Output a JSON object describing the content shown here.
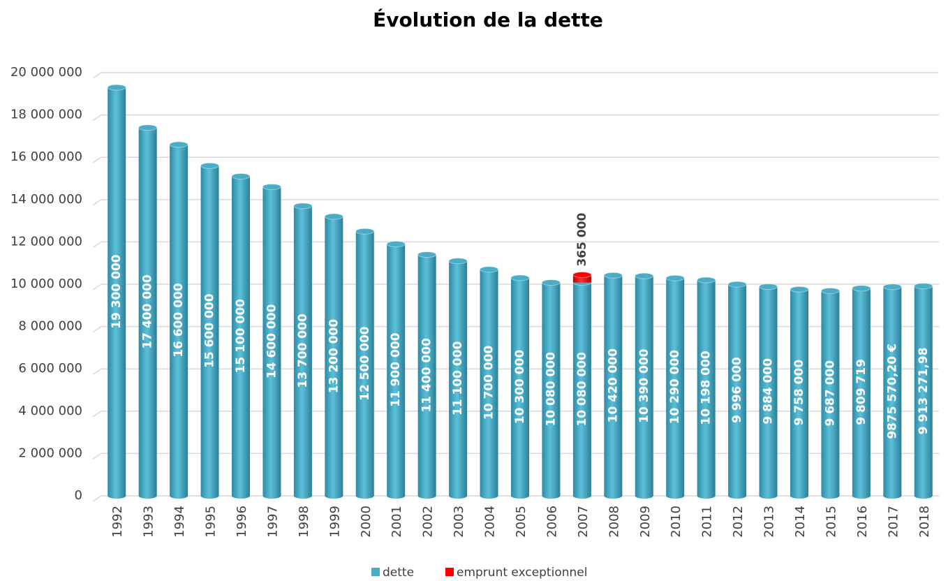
{
  "chart_data": {
    "type": "bar",
    "stacked": true,
    "title": "Évolution de la dette",
    "categories": [
      "1992",
      "1993",
      "1994",
      "1995",
      "1996",
      "1997",
      "1998",
      "1999",
      "2000",
      "2001",
      "2002",
      "2003",
      "2004",
      "2005",
      "2006",
      "2007",
      "2008",
      "2009",
      "2010",
      "2011",
      "2012",
      "2013",
      "2014",
      "2015",
      "2016",
      "2017",
      "2018"
    ],
    "series": [
      {
        "name": "dette",
        "color": "#4bacc6",
        "values": [
          19300000,
          17400000,
          16600000,
          15600000,
          15100000,
          14600000,
          13700000,
          13200000,
          12500000,
          11900000,
          11400000,
          11100000,
          10700000,
          10300000,
          10080000,
          10080000,
          10420000,
          10390000,
          10290000,
          10198000,
          9996000,
          9884000,
          9758000,
          9687000,
          9809719,
          9875570.2,
          9913271.98
        ],
        "value_labels": [
          "19 300 000",
          "17 400 000",
          "16 600 000",
          "15 600 000",
          "15 100 000",
          "14 600 000",
          "13 700 000",
          "13 200 000",
          "12 500 000",
          "11 900 000",
          "11 400 000",
          "11 100 000",
          "10 700 000",
          "10 300 000",
          "10 080 000",
          "10 080 000",
          "10 420 000",
          "10 390 000",
          "10 290 000",
          "10 198 000",
          "9 996 000",
          "9 884 000",
          "9 758 000",
          "9 687 000",
          "9 809 719",
          "9875 570,20 €",
          "9 913 271,98"
        ]
      },
      {
        "name": "emprunt exceptionnel",
        "color": "#ff0000",
        "values": [
          null,
          null,
          null,
          null,
          null,
          null,
          null,
          null,
          null,
          null,
          null,
          null,
          null,
          null,
          null,
          365000,
          null,
          null,
          null,
          null,
          null,
          null,
          null,
          null,
          null,
          null,
          null
        ],
        "value_labels": [
          null,
          null,
          null,
          null,
          null,
          null,
          null,
          null,
          null,
          null,
          null,
          null,
          null,
          null,
          null,
          "365 000",
          null,
          null,
          null,
          null,
          null,
          null,
          null,
          null,
          null,
          null,
          null
        ]
      }
    ],
    "ylim": [
      0,
      20000000
    ],
    "yticks": [
      0,
      {
        "value": 2000000,
        "label": "2 000 000"
      },
      {
        "value": 4000000,
        "label": "4 000 000"
      },
      {
        "value": 6000000,
        "label": "6 000 000"
      },
      {
        "value": 8000000,
        "label": "8 000 000"
      },
      {
        "value": 10000000,
        "label": "10 000 000"
      },
      {
        "value": 12000000,
        "label": "12 000 000"
      },
      {
        "value": 14000000,
        "label": "14 000 000"
      },
      {
        "value": 16000000,
        "label": "16 000 000"
      },
      {
        "value": 18000000,
        "label": "18 000 000"
      },
      {
        "value": 20000000,
        "label": "20 000 000"
      }
    ],
    "grid": true,
    "legend": "bottom"
  }
}
